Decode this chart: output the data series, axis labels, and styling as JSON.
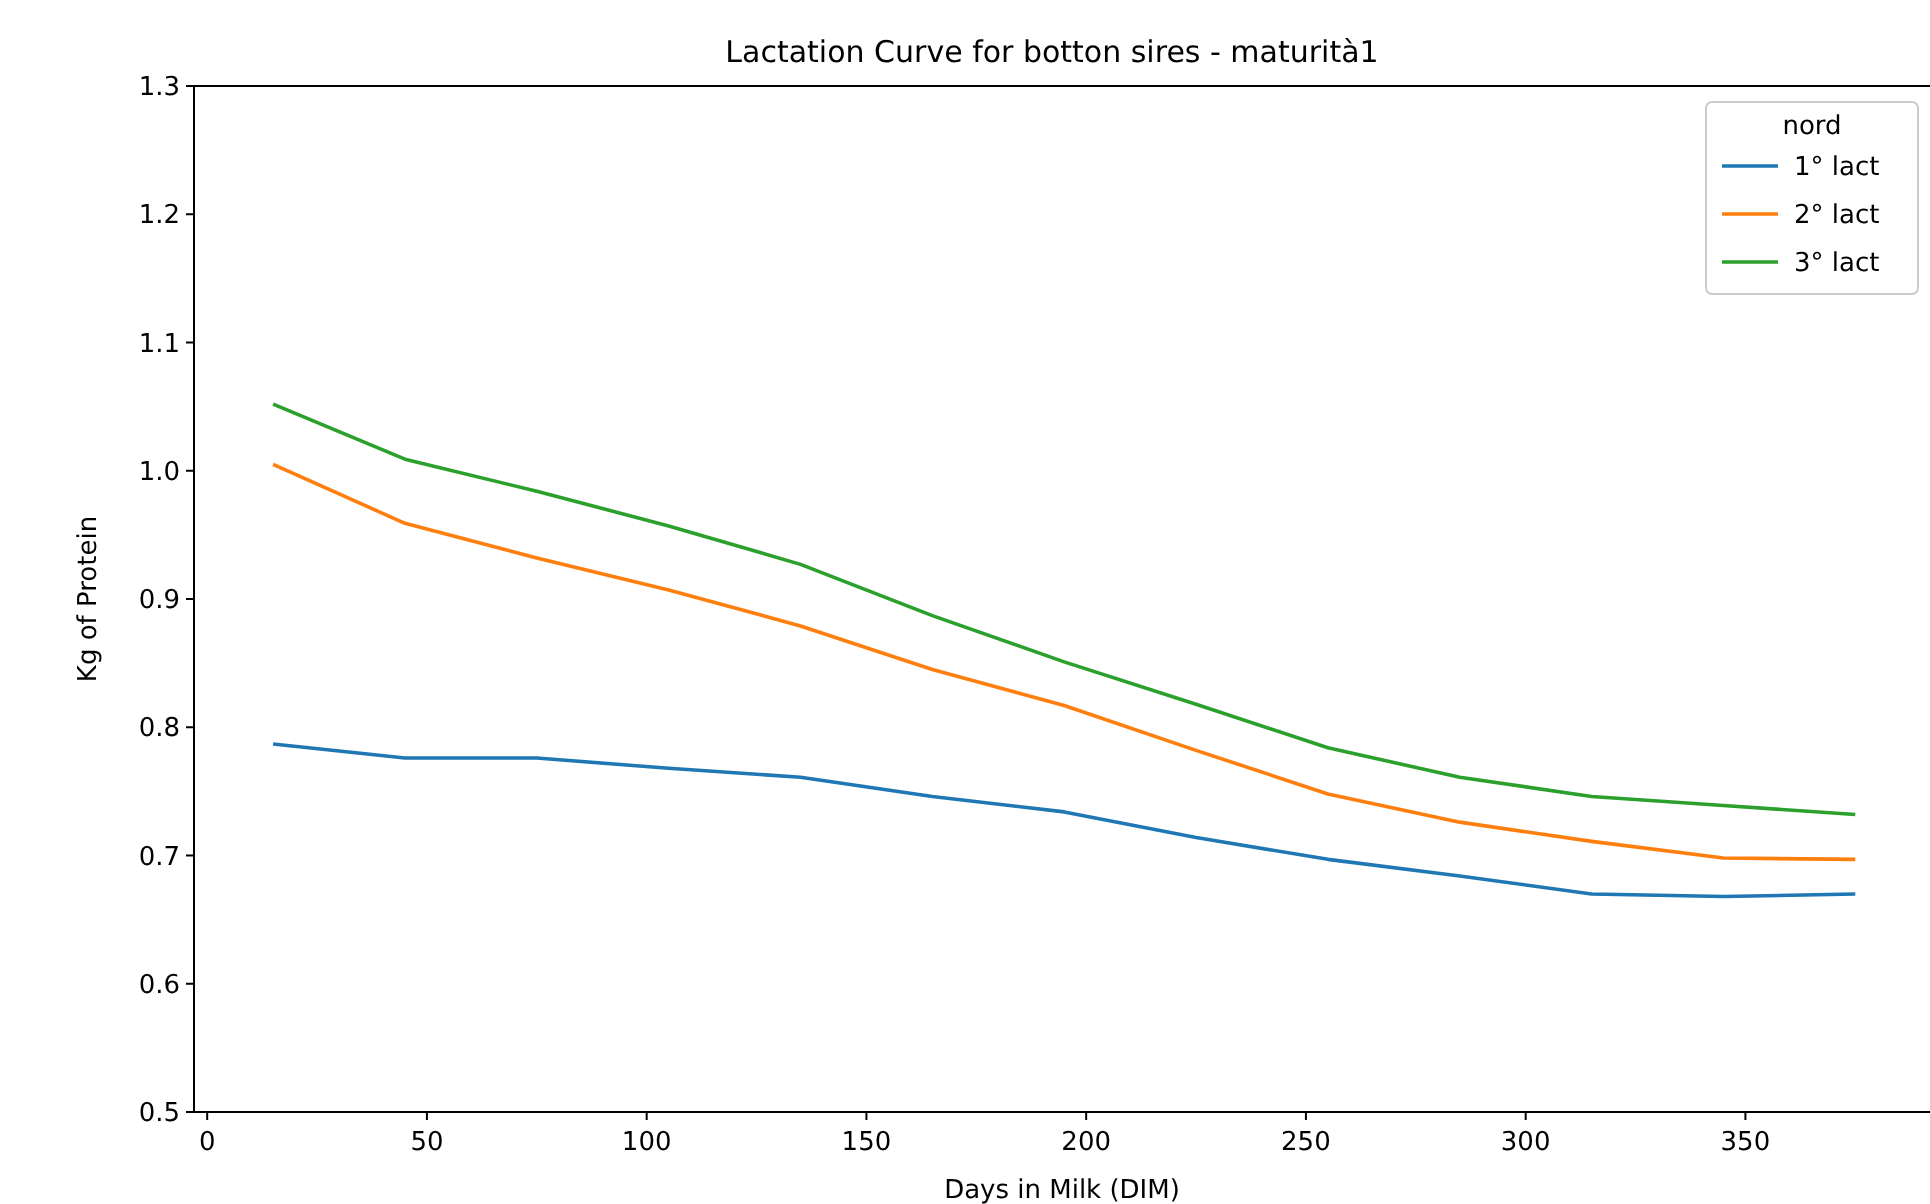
{
  "chart_data": {
    "type": "line",
    "title": "Lactation Curve for  botton sires - maturità1",
    "xlabel": "Days in Milk (DIM)",
    "ylabel": "Kg of Protein",
    "legend_title": "nord",
    "legend": "top right",
    "grid": false,
    "x": [
      15,
      45,
      75,
      105,
      135,
      165,
      195,
      225,
      255,
      285,
      315,
      345,
      375
    ],
    "series": [
      {
        "name": "1° lact",
        "color": "#1f77b4",
        "values": [
          0.787,
          0.776,
          0.776,
          0.768,
          0.761,
          0.746,
          0.734,
          0.714,
          0.697,
          0.684,
          0.67,
          0.668,
          0.67
        ]
      },
      {
        "name": "2° lact",
        "color": "#ff7f0e",
        "values": [
          1.005,
          0.959,
          0.932,
          0.907,
          0.879,
          0.845,
          0.817,
          0.782,
          0.748,
          0.726,
          0.711,
          0.698,
          0.697
        ]
      },
      {
        "name": "3° lact",
        "color": "#2ca02c",
        "values": [
          1.052,
          1.009,
          0.984,
          0.957,
          0.927,
          0.887,
          0.851,
          0.818,
          0.784,
          0.761,
          0.746,
          0.739,
          0.732
        ]
      }
    ],
    "xlim": [
      -3,
      392
    ],
    "xticks": [
      0,
      50,
      100,
      150,
      200,
      250,
      300,
      350
    ],
    "ylim": [
      0.5,
      1.3
    ],
    "yticks": [
      {
        "value": 0.5,
        "label": "0.5"
      },
      {
        "value": 0.6,
        "label": "0.6"
      },
      {
        "value": 0.7,
        "label": "0.7"
      },
      {
        "value": 0.8,
        "label": "0.8"
      },
      {
        "value": 0.9,
        "label": "0.9"
      },
      {
        "value": 1.0,
        "label": "1.0"
      },
      {
        "value": 1.1,
        "label": "1.1"
      },
      {
        "value": 1.2,
        "label": "1.2"
      },
      {
        "value": 1.3,
        "label": "1.3"
      }
    ]
  }
}
